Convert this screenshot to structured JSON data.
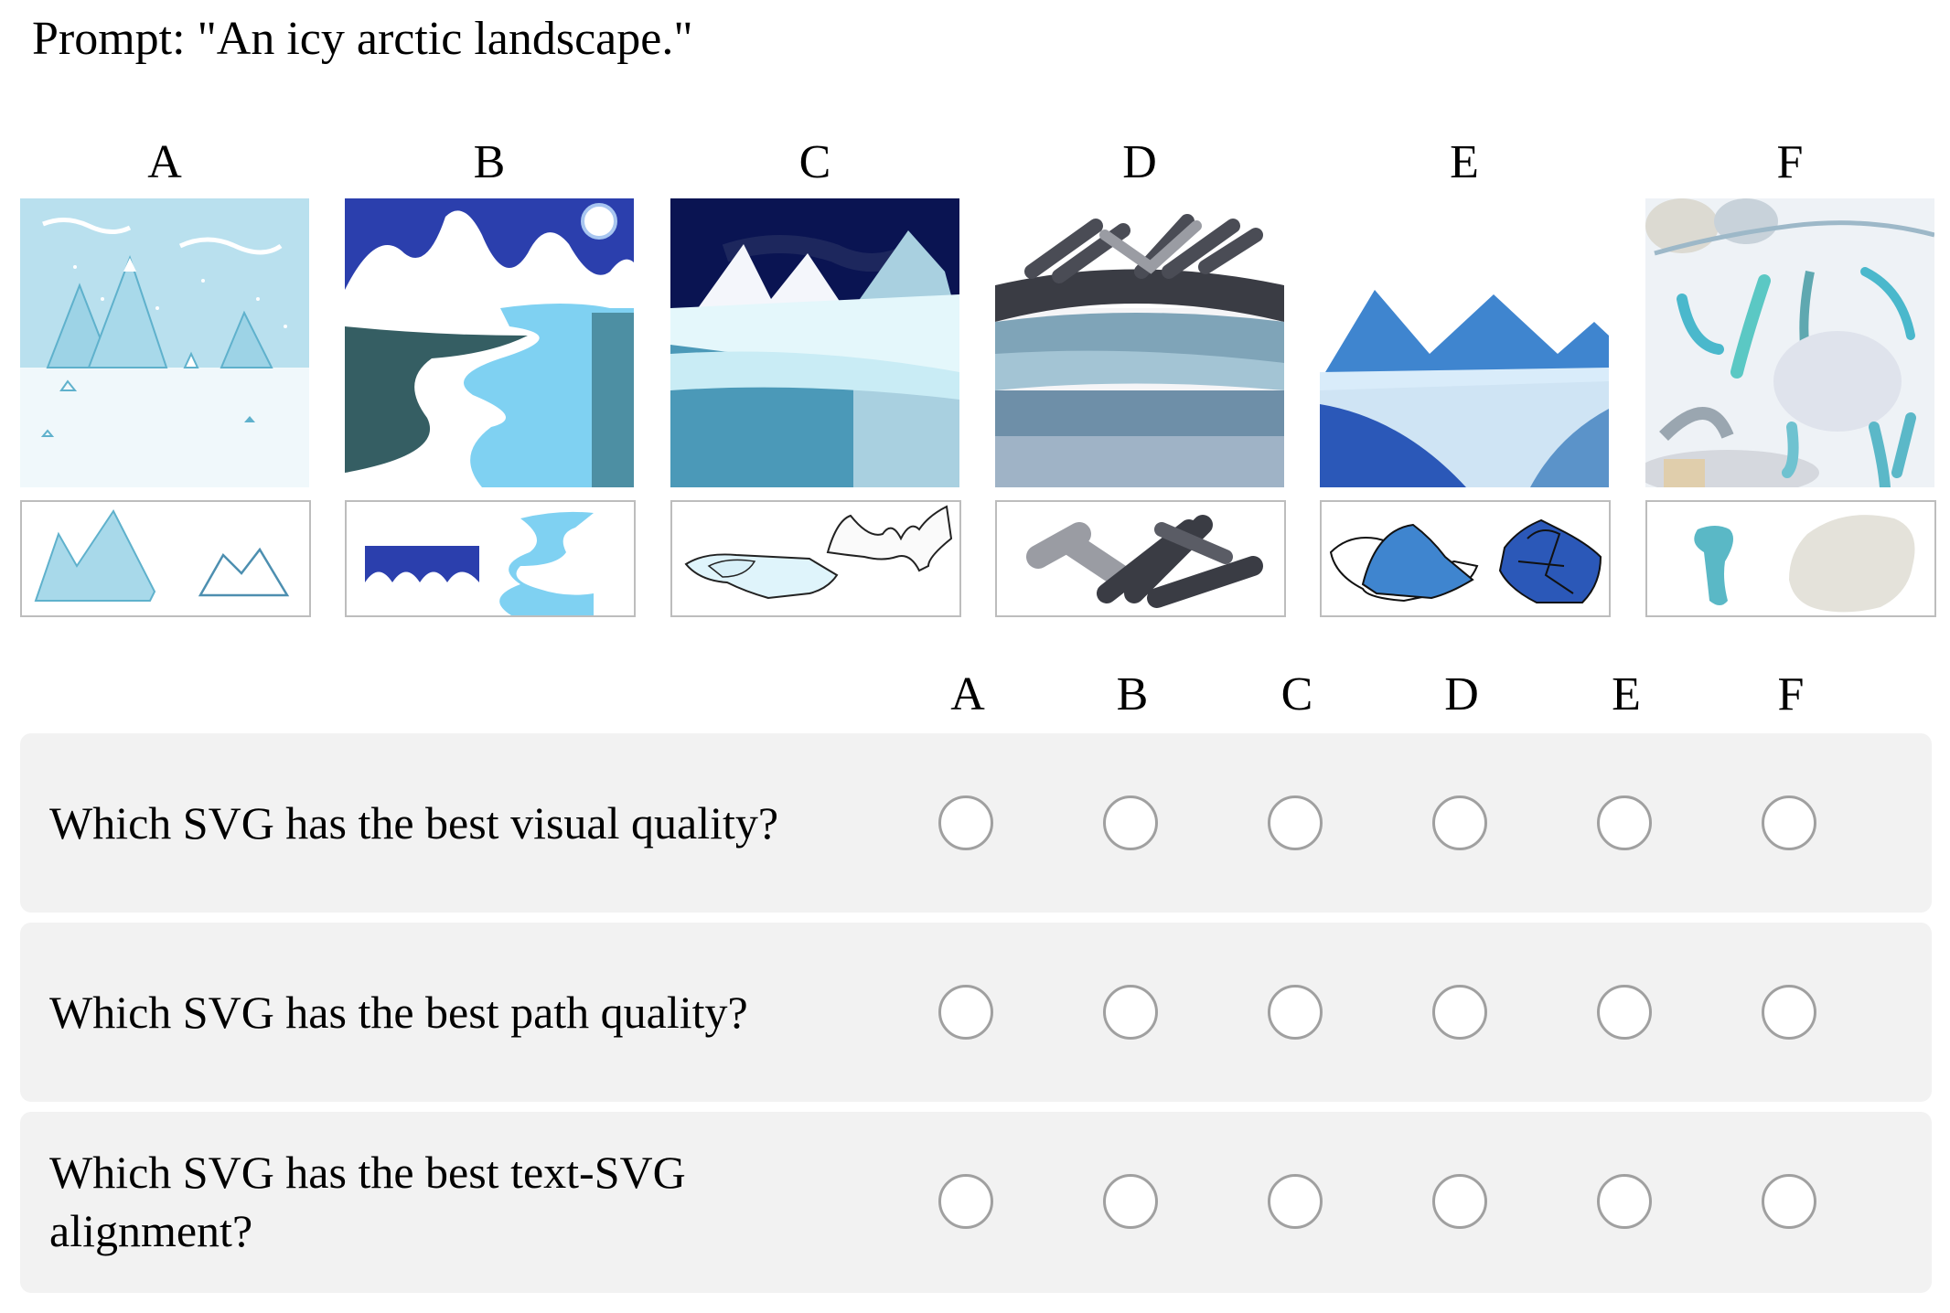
{
  "prompt": "Prompt: \"An icy arctic landscape.\"",
  "candidates": [
    {
      "label": "A"
    },
    {
      "label": "B"
    },
    {
      "label": "C"
    },
    {
      "label": "D"
    },
    {
      "label": "E"
    },
    {
      "label": "F"
    }
  ],
  "option_headers": [
    "A",
    "B",
    "C",
    "D",
    "E",
    "F"
  ],
  "questions": [
    {
      "text": "Which SVG has the best visual quality?"
    },
    {
      "text": "Which SVG has the best path quality?"
    },
    {
      "text": "Which SVG has the best text-SVG alignment?"
    }
  ]
}
